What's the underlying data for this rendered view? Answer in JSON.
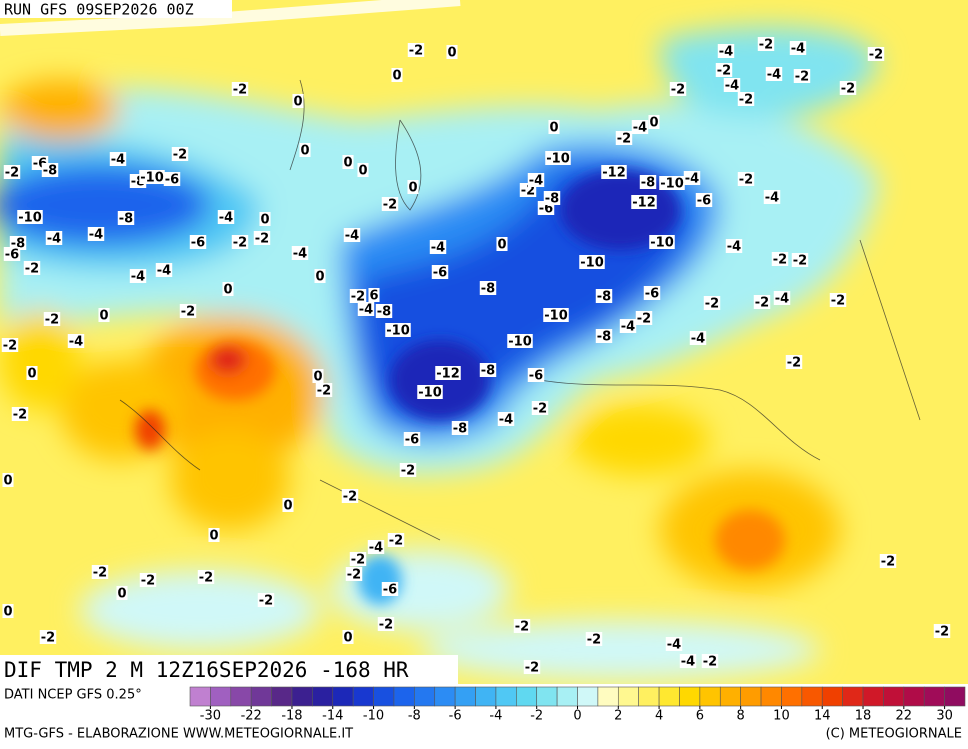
{
  "header": {
    "run": "RUN GFS 09SEP2026 00Z"
  },
  "title": "DIF TMP 2 M 12Z16SEP2026 -168 HR",
  "source": "DATI NCEP GFS 0.25°",
  "colorbar": {
    "colors": [
      "#c080d0",
      "#a060c0",
      "#8848a8",
      "#703898",
      "#582888",
      "#3c2090",
      "#2a20a0",
      "#1c28b8",
      "#1838d0",
      "#1850e0",
      "#1c64ec",
      "#2478f0",
      "#2c8cf4",
      "#34a0f4",
      "#40b4f4",
      "#50c8f4",
      "#60d8f0",
      "#80e4f0",
      "#a8f0f4",
      "#d0f8f8",
      "#fffcc0",
      "#fff890",
      "#fff060",
      "#ffe830",
      "#ffd800",
      "#ffc400",
      "#ffb000",
      "#ff9c00",
      "#ff8800",
      "#ff7000",
      "#f85800",
      "#f04000",
      "#e02818",
      "#d01828",
      "#c01038",
      "#b00c48",
      "#a00c58",
      "#900c60"
    ],
    "ticks": [
      -30,
      -22,
      -18,
      -14,
      -10,
      -8,
      -6,
      -4,
      -2,
      0,
      2,
      4,
      6,
      8,
      10,
      14,
      18,
      22,
      30
    ]
  },
  "footer": {
    "credit": "MTG-GFS - ELABORAZIONE WWW.METEOGIORNALE.IT",
    "copyright": "(C) METEOGIORNALE"
  },
  "contour_labels": [
    -2,
    0,
    0,
    -2,
    0,
    0,
    0,
    0,
    0,
    -2,
    -2,
    -4,
    -6,
    -8,
    -2,
    -8,
    -10,
    -6,
    -10,
    -8,
    -4,
    0,
    -2,
    -2,
    -6,
    -4,
    -4,
    -8,
    -6,
    -2,
    -4,
    -4,
    -4,
    0,
    0,
    -2,
    -2,
    0,
    -4,
    -4,
    -4,
    0,
    -6,
    -8,
    -2,
    6,
    -4,
    -8,
    -10,
    -2,
    0,
    -12,
    -8,
    -10,
    -6,
    -10,
    -10,
    -8,
    -6,
    -8,
    -4,
    -2,
    -10,
    -10,
    -10,
    -12,
    -8,
    -10,
    -4,
    -12,
    -6,
    -2,
    -4,
    -6,
    -8,
    0,
    -4,
    -2,
    0,
    -2,
    -4,
    -4,
    -2,
    -2,
    -2,
    -2,
    -4,
    -2,
    -4,
    -2,
    -2,
    -4,
    -2,
    -4,
    -2,
    -2,
    -4,
    -4,
    -2,
    -2,
    -2,
    -2,
    -4,
    -8,
    -6,
    -2,
    -2,
    0,
    0,
    0,
    0,
    -2,
    -2,
    -4,
    -2,
    -2,
    -6,
    -2,
    0,
    -2,
    -2,
    -2,
    -2,
    0,
    0,
    -2,
    -2,
    -2,
    -4,
    -4,
    -2,
    -2,
    -2,
    -2,
    -2,
    -2
  ]
}
